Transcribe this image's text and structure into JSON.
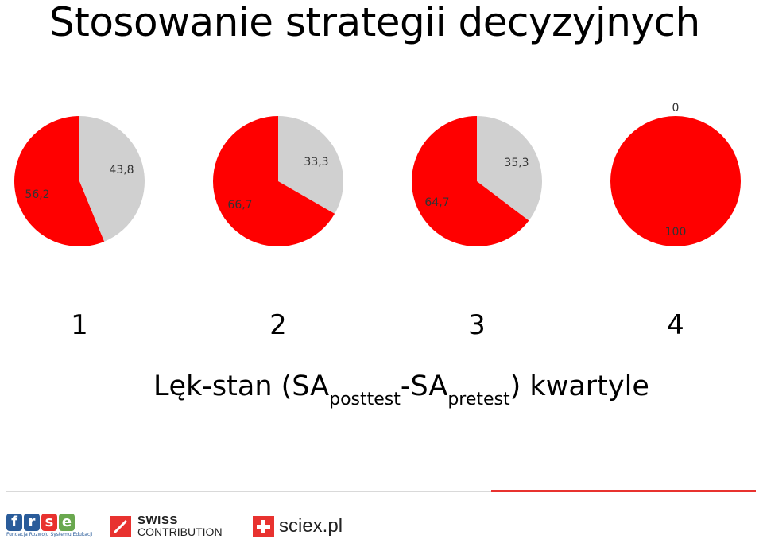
{
  "title": "Stosowanie strategii decyzyjnych",
  "chart_data": {
    "type": "pie",
    "colors": {
      "red": "#ff0000",
      "gray": "#d0d0d0"
    },
    "pies": [
      {
        "category": "1",
        "slices": [
          {
            "value": 56.2,
            "label": "56,2",
            "color": "red"
          },
          {
            "value": 43.8,
            "label": "43,8",
            "color": "gray"
          }
        ]
      },
      {
        "category": "2",
        "slices": [
          {
            "value": 66.7,
            "label": "66,7",
            "color": "red"
          },
          {
            "value": 33.3,
            "label": "33,3",
            "color": "gray"
          }
        ]
      },
      {
        "category": "3",
        "slices": [
          {
            "value": 64.7,
            "label": "64,7",
            "color": "red"
          },
          {
            "value": 35.3,
            "label": "35,3",
            "color": "gray"
          }
        ]
      },
      {
        "category": "4",
        "slices": [
          {
            "value": 100,
            "label": "100",
            "color": "red"
          },
          {
            "value": 0,
            "label": "0",
            "color": "gray"
          }
        ]
      }
    ],
    "xlabel": {
      "main": "Lęk-stan (SA",
      "sub1": "posttest",
      "mid": "-SA",
      "sub2": "pretest",
      "end": ") kwartyle"
    }
  },
  "logos": {
    "frse_letters": [
      "f",
      "r",
      "s",
      "e"
    ],
    "frse_colors": [
      "#2a5c9a",
      "#2a5c9a",
      "#e8322f",
      "#6aa84f"
    ],
    "frse_caption": "Fundacja Rozwoju Systemu Edukacji",
    "swiss_line1": "SWISS",
    "swiss_line2": "CONTRIBUTION",
    "sciex": "sciex.pl"
  }
}
